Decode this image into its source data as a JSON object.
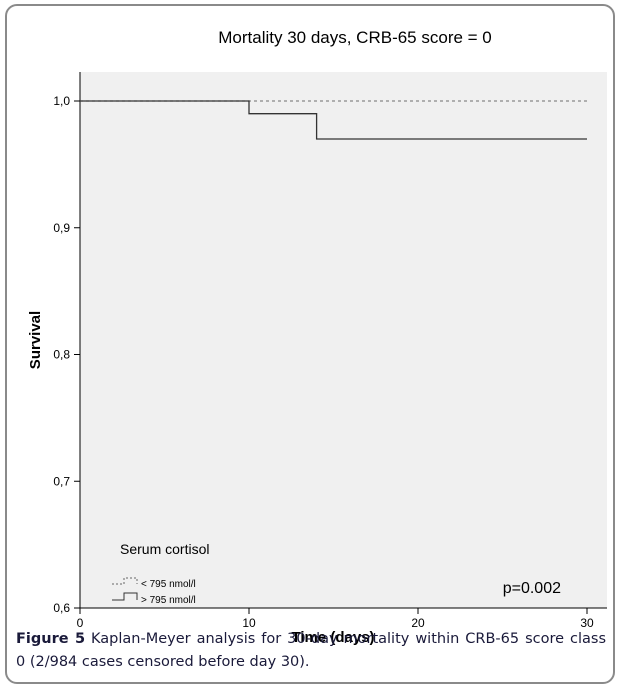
{
  "chart_data": {
    "type": "line",
    "subtype": "kaplan-meier step curve",
    "title": "Mortality 30 days, CRB-65 score = 0",
    "xlabel": "Time (days)",
    "ylabel": "Survival",
    "xlim": [
      0,
      30
    ],
    "ylim": [
      0.6,
      1.0
    ],
    "x_ticks": [
      0,
      10,
      20,
      30
    ],
    "x_tick_labels": [
      "0",
      "10",
      "20",
      "30"
    ],
    "y_ticks": [
      0.6,
      0.7,
      0.8,
      0.9,
      1.0
    ],
    "y_tick_labels": [
      "0,6",
      "0,7",
      "0,8",
      "0,9",
      "1,0"
    ],
    "grid": false,
    "plot_background": "#f0f0f0",
    "legend_title": "Serum cortisol",
    "legend_position": "bottom-left",
    "series": [
      {
        "name": "< 795 nmol/l",
        "style": "dashed",
        "color": "#888888",
        "x": [
          0,
          30
        ],
        "y": [
          1.0,
          1.0
        ]
      },
      {
        "name": "> 795 nmol/l",
        "style": "solid",
        "color": "#333333",
        "x": [
          0,
          10,
          14,
          30
        ],
        "y": [
          1.0,
          0.99,
          0.97,
          0.97
        ]
      }
    ],
    "annotations": [
      {
        "text": "p=0.002",
        "position": "bottom-right"
      }
    ]
  },
  "caption": {
    "label": "Figure 5",
    "text": "Kaplan-Meyer analysis for 30-day mortality within CRB-65 score class 0 (2/984 cases censored before day 30)."
  }
}
